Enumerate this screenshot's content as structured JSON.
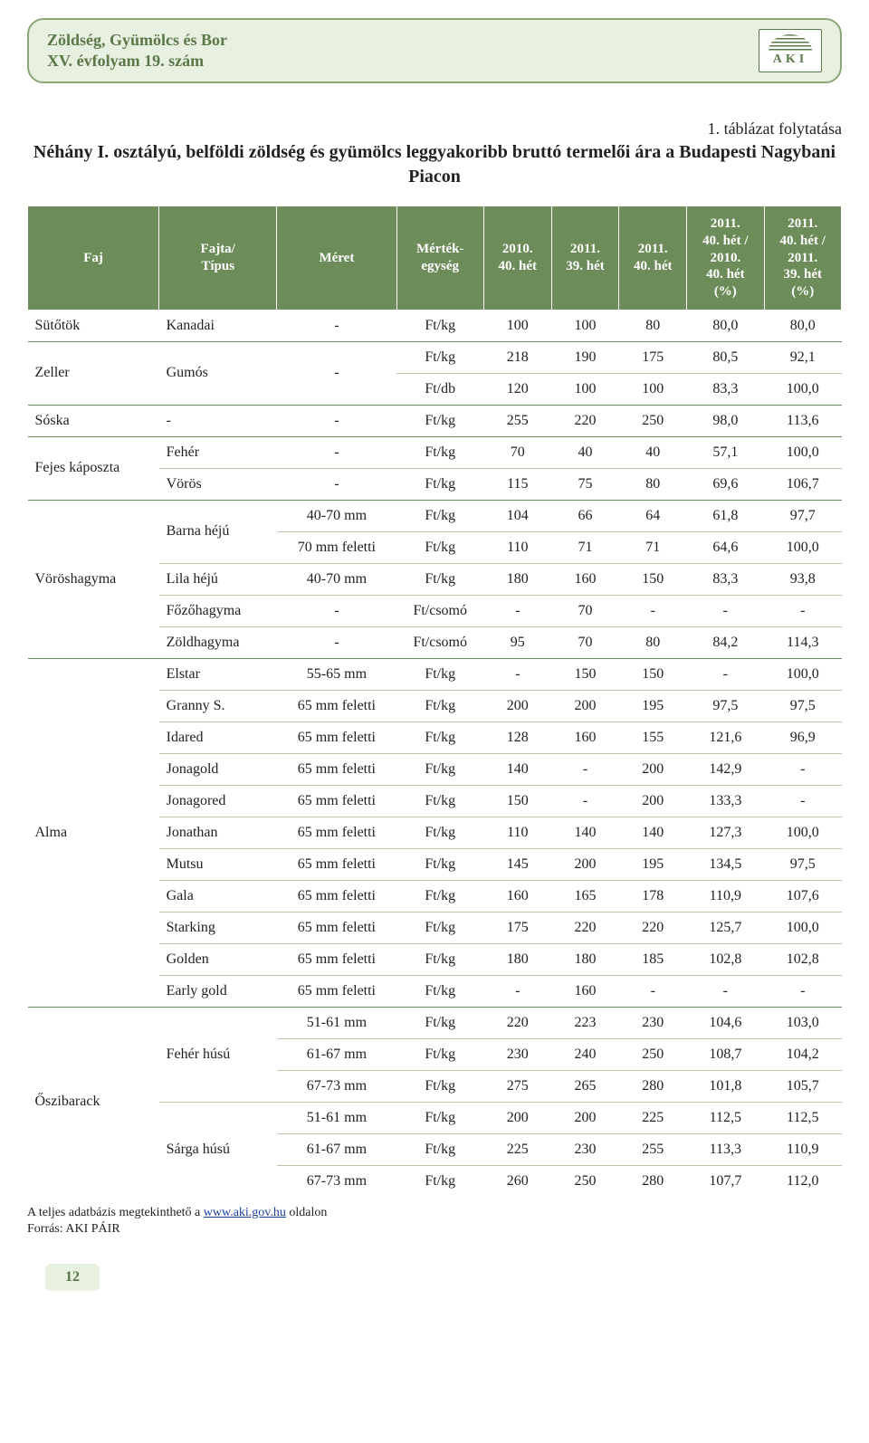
{
  "header": {
    "line1": "Zöldség, Gyümölcs és Bor",
    "line2": "XV. évfolyam 19. szám",
    "logo_text": "AKI"
  },
  "continuation": "1. táblázat folytatása",
  "title": "Néhány I. osztályú, belföldi zöldség és gyümölcs leggyakoribb bruttó termelői ára a Budapesti Nagybani Piacon",
  "columns": [
    "Faj",
    "Fajta/\nTípus",
    "Méret",
    "Mérték-\negység",
    "2010.\n40. hét",
    "2011.\n39. hét",
    "2011.\n40. hét",
    "2011.\n40. hét /\n2010.\n40. hét\n(%)",
    "2011.\n40. hét /\n2011.\n39. hét\n(%)"
  ],
  "rows": [
    {
      "g": 1,
      "faj": "Sütőtök",
      "fajta": "Kanadai",
      "meret": "-",
      "unit": "Ft/kg",
      "v": [
        "100",
        "100",
        "80",
        "80,0",
        "80,0"
      ]
    },
    {
      "g": 1,
      "faj": "Zeller",
      "faj_rs": 2,
      "fajta": "Gumós",
      "fajta_rs": 2,
      "meret": "-",
      "meret_rs": 2,
      "unit": "Ft/kg",
      "v": [
        "218",
        "190",
        "175",
        "80,5",
        "92,1"
      ]
    },
    {
      "sub": 1,
      "unit": "Ft/db",
      "v": [
        "120",
        "100",
        "100",
        "83,3",
        "100,0"
      ]
    },
    {
      "g": 1,
      "faj": "Sóska",
      "fajta": "-",
      "meret": "-",
      "unit": "Ft/kg",
      "v": [
        "255",
        "220",
        "250",
        "98,0",
        "113,6"
      ]
    },
    {
      "g": 1,
      "faj": "Fejes káposzta",
      "faj_rs": 2,
      "fajta": "Fehér",
      "meret": "-",
      "unit": "Ft/kg",
      "v": [
        "70",
        "40",
        "40",
        "57,1",
        "100,0"
      ]
    },
    {
      "sub": 1,
      "fajta": "Vörös",
      "meret": "-",
      "unit": "Ft/kg",
      "v": [
        "115",
        "75",
        "80",
        "69,6",
        "106,7"
      ]
    },
    {
      "g": 1,
      "faj": "Vöröshagyma",
      "faj_rs": 5,
      "fajta": "Barna héjú",
      "fajta_rs": 2,
      "meret": "40-70 mm",
      "unit": "Ft/kg",
      "v": [
        "104",
        "66",
        "64",
        "61,8",
        "97,7"
      ]
    },
    {
      "sub": 1,
      "meret": "70 mm feletti",
      "unit": "Ft/kg",
      "v": [
        "110",
        "71",
        "71",
        "64,6",
        "100,0"
      ]
    },
    {
      "sub": 1,
      "fajta": "Lila héjú",
      "meret": "40-70 mm",
      "unit": "Ft/kg",
      "v": [
        "180",
        "160",
        "150",
        "83,3",
        "93,8"
      ]
    },
    {
      "sub": 1,
      "fajta": "Főzőhagyma",
      "meret": "-",
      "unit": "Ft/csomó",
      "v": [
        "-",
        "70",
        "-",
        "-",
        "-"
      ]
    },
    {
      "sub": 1,
      "fajta": "Zöldhagyma",
      "meret": "-",
      "unit": "Ft/csomó",
      "v": [
        "95",
        "70",
        "80",
        "84,2",
        "114,3"
      ]
    },
    {
      "g": 1,
      "faj": "Alma",
      "faj_rs": 11,
      "fajta": "Elstar",
      "meret": "55-65 mm",
      "unit": "Ft/kg",
      "v": [
        "-",
        "150",
        "150",
        "-",
        "100,0"
      ]
    },
    {
      "sub": 1,
      "fajta": "Granny S.",
      "meret": "65 mm feletti",
      "unit": "Ft/kg",
      "v": [
        "200",
        "200",
        "195",
        "97,5",
        "97,5"
      ]
    },
    {
      "sub": 1,
      "fajta": "Idared",
      "meret": "65 mm feletti",
      "unit": "Ft/kg",
      "v": [
        "128",
        "160",
        "155",
        "121,6",
        "96,9"
      ]
    },
    {
      "sub": 1,
      "fajta": "Jonagold",
      "meret": "65 mm feletti",
      "unit": "Ft/kg",
      "v": [
        "140",
        "-",
        "200",
        "142,9",
        "-"
      ]
    },
    {
      "sub": 1,
      "fajta": "Jonagored",
      "meret": "65 mm feletti",
      "unit": "Ft/kg",
      "v": [
        "150",
        "-",
        "200",
        "133,3",
        "-"
      ]
    },
    {
      "sub": 1,
      "fajta": "Jonathan",
      "meret": "65 mm feletti",
      "unit": "Ft/kg",
      "v": [
        "110",
        "140",
        "140",
        "127,3",
        "100,0"
      ]
    },
    {
      "sub": 1,
      "fajta": "Mutsu",
      "meret": "65 mm feletti",
      "unit": "Ft/kg",
      "v": [
        "145",
        "200",
        "195",
        "134,5",
        "97,5"
      ]
    },
    {
      "sub": 1,
      "fajta": "Gala",
      "meret": "65 mm feletti",
      "unit": "Ft/kg",
      "v": [
        "160",
        "165",
        "178",
        "110,9",
        "107,6"
      ]
    },
    {
      "sub": 1,
      "fajta": "Starking",
      "meret": "65 mm feletti",
      "unit": "Ft/kg",
      "v": [
        "175",
        "220",
        "220",
        "125,7",
        "100,0"
      ]
    },
    {
      "sub": 1,
      "fajta": "Golden",
      "meret": "65 mm feletti",
      "unit": "Ft/kg",
      "v": [
        "180",
        "180",
        "185",
        "102,8",
        "102,8"
      ]
    },
    {
      "sub": 1,
      "fajta": "Early gold",
      "meret": "65 mm feletti",
      "unit": "Ft/kg",
      "v": [
        "-",
        "160",
        "-",
        "-",
        "-"
      ]
    },
    {
      "g": 1,
      "faj": "Őszibarack",
      "faj_rs": 6,
      "fajta": "Fehér húsú",
      "fajta_rs": 3,
      "meret": "51-61 mm",
      "unit": "Ft/kg",
      "v": [
        "220",
        "223",
        "230",
        "104,6",
        "103,0"
      ]
    },
    {
      "sub": 1,
      "meret": "61-67 mm",
      "unit": "Ft/kg",
      "v": [
        "230",
        "240",
        "250",
        "108,7",
        "104,2"
      ]
    },
    {
      "sub": 1,
      "meret": "67-73 mm",
      "unit": "Ft/kg",
      "v": [
        "275",
        "265",
        "280",
        "101,8",
        "105,7"
      ]
    },
    {
      "sub": 1,
      "fajta": "Sárga húsú",
      "fajta_rs": 3,
      "meret": "51-61 mm",
      "unit": "Ft/kg",
      "v": [
        "200",
        "200",
        "225",
        "112,5",
        "112,5"
      ]
    },
    {
      "sub": 1,
      "meret": "61-67 mm",
      "unit": "Ft/kg",
      "v": [
        "225",
        "230",
        "255",
        "113,3",
        "110,9"
      ]
    },
    {
      "sub": 1,
      "meret": "67-73 mm",
      "unit": "Ft/kg",
      "v": [
        "260",
        "250",
        "280",
        "107,7",
        "112,0"
      ]
    }
  ],
  "footnote_pre": "A teljes adatbázis megtekinthető a ",
  "footnote_link": "www.aki.gov.hu",
  "footnote_post": " oldalon",
  "source": "Forrás: AKI PÁIR",
  "page": "12",
  "colors": {
    "header_green": "#6c8d5a",
    "border_green": "#8aa778",
    "bg_green": "#e8f0e0",
    "text_green": "#5a7848",
    "sub_border": "#b5c8a8"
  }
}
